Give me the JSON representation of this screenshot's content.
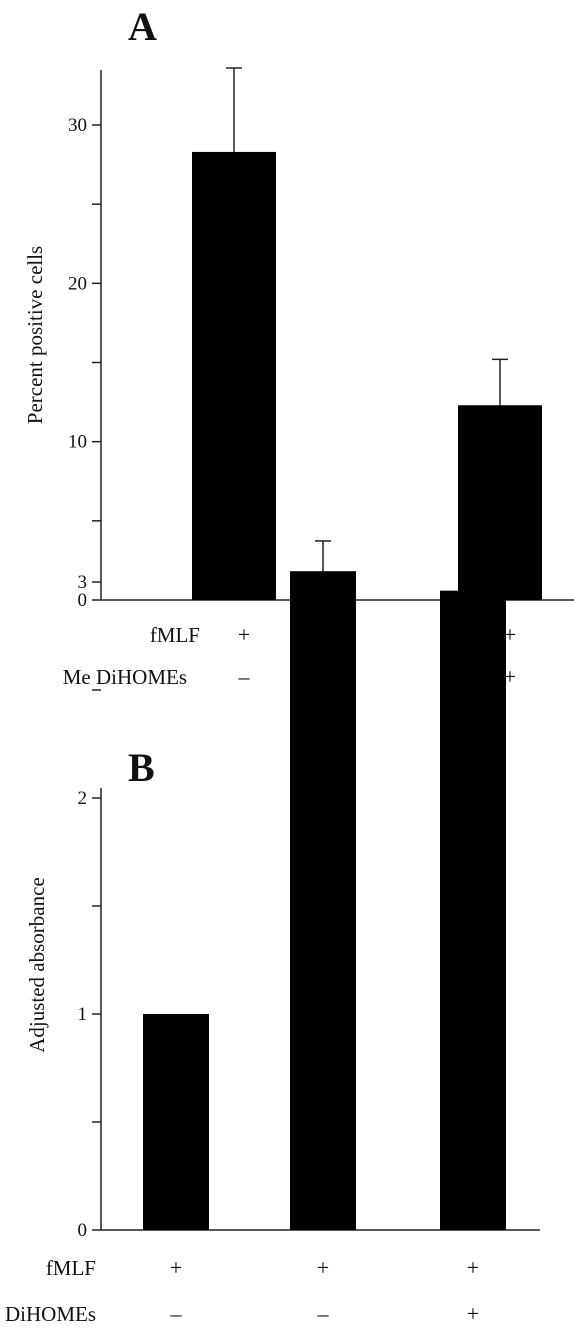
{
  "chart_data": [
    {
      "type": "bar",
      "panel_label": "A",
      "ylabel": "Percent positive cells",
      "ylim": [
        0,
        33
      ],
      "yticks": [
        0,
        10,
        20,
        30
      ],
      "yminor": [
        5,
        15,
        25
      ],
      "categories": [
        "1",
        "2"
      ],
      "values": [
        28.3,
        12.3
      ],
      "errors": [
        5.3,
        2.9
      ],
      "condition_rows": [
        {
          "label": "fMLF",
          "signs": [
            "+",
            "+"
          ]
        },
        {
          "label": "Me DiHOMEs",
          "signs": [
            "–",
            "+"
          ]
        }
      ]
    },
    {
      "type": "bar",
      "panel_label": "B",
      "ylabel": "Adjusted absorbance",
      "ylim": [
        0,
        3.2
      ],
      "yticks": [
        0,
        1,
        2,
        3
      ],
      "yminor": [
        0.5,
        1.5,
        2.5
      ],
      "categories": [
        "1",
        "2",
        "3"
      ],
      "values": [
        1.0,
        3.05,
        2.96
      ],
      "errors": [
        0,
        0.14,
        0
      ],
      "condition_rows": [
        {
          "label": "fMLF",
          "signs": [
            "+",
            "+",
            "+"
          ]
        },
        {
          "label": "Me DiHOMEs",
          "signs": [
            "–",
            "–",
            "+"
          ]
        }
      ]
    }
  ]
}
